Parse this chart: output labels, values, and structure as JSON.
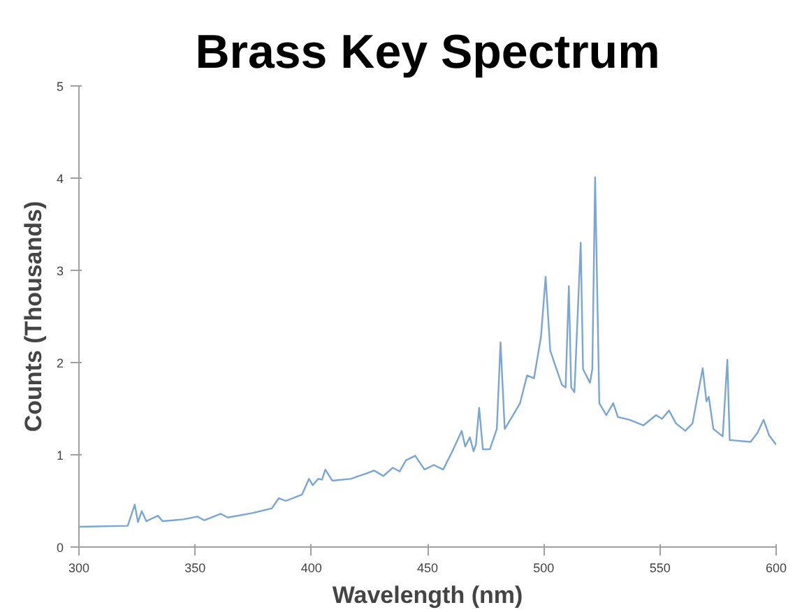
{
  "chart_data": {
    "type": "line",
    "title": "Brass Key Spectrum",
    "xlabel": "Wavelength (nm)",
    "ylabel": "Counts (Thousands)",
    "xlim": [
      300,
      600
    ],
    "xticks": [
      300,
      350,
      400,
      450,
      500,
      550,
      600
    ],
    "ylim": [
      0,
      5
    ],
    "yticks": [
      0,
      1,
      2,
      3,
      4,
      5
    ],
    "grid": false,
    "marker": "none",
    "line_style": "solid",
    "series": [
      {
        "color": "#7aa6d6",
        "x": [
          300,
          321,
          324,
          325.4,
          327,
          329,
          334,
          336,
          345,
          351,
          354,
          361,
          364,
          375,
          383,
          386,
          389,
          396,
          399,
          400.6,
          403,
          404.6,
          406,
          409,
          417,
          424,
          427,
          431,
          435,
          438,
          440.7,
          444.7,
          448.7,
          452.7,
          456.7,
          460.7,
          464.7,
          466.2,
          468.2,
          469.8,
          470.8,
          472.2,
          473.8,
          476.8,
          479.8,
          481.4,
          483.2,
          486.8,
          489.8,
          492.8,
          495.8,
          498.8,
          500.8,
          502.8,
          504.8,
          507.8,
          509.4,
          510.8,
          511.8,
          513.2,
          515.9,
          516.9,
          519.9,
          520.9,
          522.1,
          523.9,
          526.9,
          529.9,
          531.9,
          536.9,
          542.9,
          548.3,
          550.9,
          553.9,
          556.9,
          560.9,
          564,
          568.4,
          570,
          571,
          573,
          577,
          579,
          580,
          589,
          592,
          594.6,
          597,
          600
        ],
        "values": [
          0.22,
          0.23,
          0.46,
          0.27,
          0.39,
          0.28,
          0.34,
          0.28,
          0.3,
          0.33,
          0.29,
          0.36,
          0.32,
          0.37,
          0.42,
          0.53,
          0.5,
          0.57,
          0.74,
          0.67,
          0.74,
          0.73,
          0.84,
          0.72,
          0.74,
          0.8,
          0.83,
          0.77,
          0.86,
          0.82,
          0.94,
          0.99,
          0.84,
          0.89,
          0.84,
          1.04,
          1.26,
          1.09,
          1.19,
          1.04,
          1.11,
          1.51,
          1.06,
          1.06,
          1.28,
          2.22,
          1.28,
          1.43,
          1.56,
          1.86,
          1.83,
          2.28,
          2.93,
          2.13,
          1.98,
          1.76,
          1.73,
          2.83,
          1.73,
          1.68,
          3.3,
          1.93,
          1.78,
          1.93,
          4.01,
          1.56,
          1.43,
          1.56,
          1.41,
          1.38,
          1.32,
          1.43,
          1.39,
          1.48,
          1.34,
          1.26,
          1.34,
          1.94,
          1.58,
          1.63,
          1.28,
          1.2,
          2.03,
          1.16,
          1.14,
          1.24,
          1.38,
          1.21,
          1.11
        ]
      }
    ]
  }
}
